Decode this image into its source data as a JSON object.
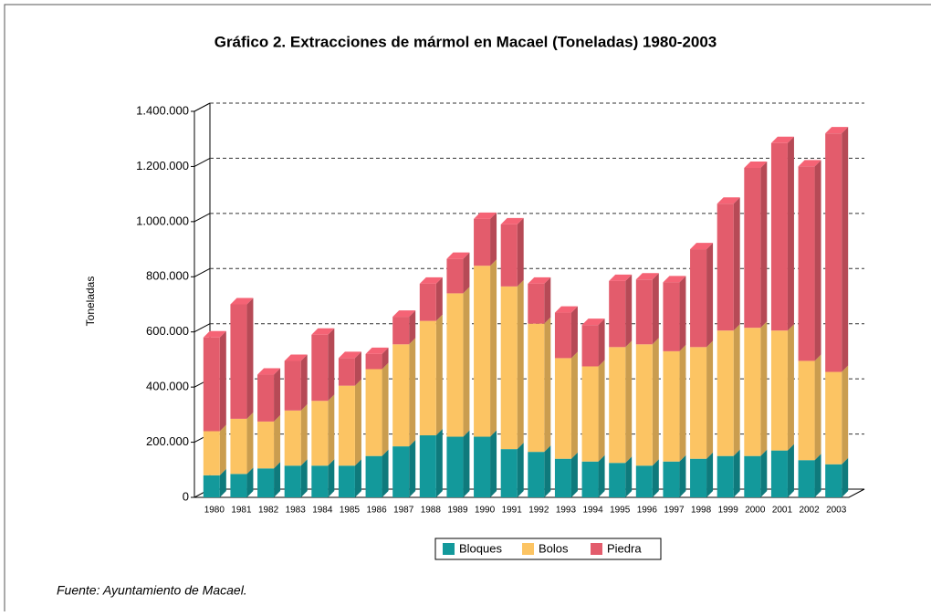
{
  "chart_data": {
    "type": "bar",
    "stacked": true,
    "title": "Gráfico 2. Extracciones de mármol en Macael (Toneladas) 1980-2003",
    "ylabel": "Toneladas",
    "note": "Fuente: Ayuntamiento de Macael.",
    "categories": [
      "1980",
      "1981",
      "1982",
      "1983",
      "1984",
      "1985",
      "1986",
      "1987",
      "1988",
      "1989",
      "1990",
      "1991",
      "1992",
      "1993",
      "1994",
      "1995",
      "1996",
      "1997",
      "1998",
      "1999",
      "2000",
      "2001",
      "2002",
      "2003"
    ],
    "series": [
      {
        "name": "Bloques",
        "color": "#13999b",
        "values": [
          80000,
          85000,
          105000,
          115000,
          115000,
          115000,
          150000,
          185000,
          225000,
          220000,
          220000,
          175000,
          165000,
          140000,
          130000,
          125000,
          115000,
          130000,
          140000,
          150000,
          150000,
          170000,
          135000,
          120000
        ]
      },
      {
        "name": "Bolos",
        "color": "#fcc463",
        "values": [
          160000,
          200000,
          170000,
          200000,
          235000,
          290000,
          315000,
          370000,
          415000,
          520000,
          620000,
          590000,
          465000,
          365000,
          345000,
          420000,
          440000,
          400000,
          405000,
          455000,
          465000,
          435000,
          360000,
          335000
        ]
      },
      {
        "name": "Piedra",
        "color": "#e35c6c",
        "values": [
          340000,
          415000,
          170000,
          180000,
          240000,
          100000,
          55000,
          100000,
          135000,
          125000,
          170000,
          225000,
          145000,
          165000,
          150000,
          240000,
          235000,
          250000,
          355000,
          460000,
          580000,
          680000,
          705000,
          865000
        ]
      }
    ],
    "ylim": [
      0,
      1400000
    ],
    "yticks": [
      0,
      {
        "value": 200000,
        "label": "200.000"
      },
      {
        "value": 400000,
        "label": "400.000"
      },
      {
        "value": 600000,
        "label": "600.000"
      },
      {
        "value": 800000,
        "label": "800.000"
      },
      {
        "value": 1000000,
        "label": "1.000.000"
      },
      {
        "value": 1200000,
        "label": "1.200.000"
      },
      {
        "value": 1400000,
        "label": "1.400.000"
      }
    ],
    "grid": true,
    "legend": "bottom"
  }
}
